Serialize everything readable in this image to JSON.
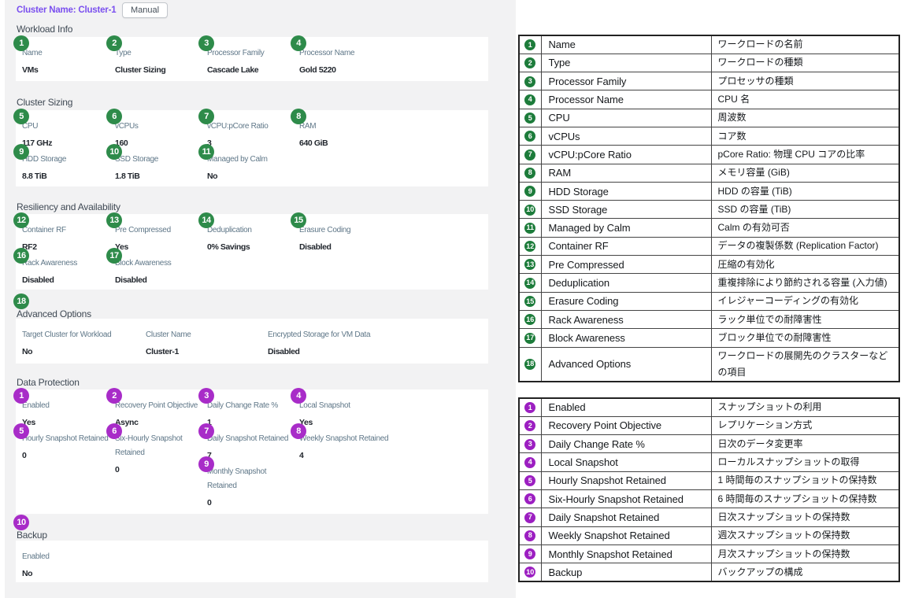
{
  "colors": {
    "accent_violet": "#7a4fef",
    "badge_green": "#2e8b4a",
    "badge_purple": "#a82cc8"
  },
  "header": {
    "title": "Cluster Name: Cluster-1",
    "button": "Manual"
  },
  "sections": [
    {
      "title": "Workload Info",
      "badge_color": "green",
      "columns": [
        {
          "fields": [
            {
              "n": "1",
              "label": "Name",
              "value": "VMs"
            }
          ]
        },
        {
          "fields": [
            {
              "n": "2",
              "label": "Type",
              "value": "Cluster Sizing"
            }
          ]
        },
        {
          "fields": [
            {
              "n": "3",
              "label": "Processor Family",
              "value": "Cascade Lake"
            }
          ]
        },
        {
          "fields": [
            {
              "n": "4",
              "label": "Processor Name",
              "value": "Gold 5220"
            }
          ]
        }
      ]
    },
    {
      "title": "Cluster Sizing",
      "badge_color": "green",
      "columns": [
        {
          "fields": [
            {
              "n": "5",
              "label": "CPU",
              "value": "117 GHz"
            },
            {
              "n": "9",
              "label": "HDD Storage",
              "value": "8.8 TiB"
            }
          ]
        },
        {
          "fields": [
            {
              "n": "6",
              "label": "vCPUs",
              "value": "160"
            },
            {
              "n": "10",
              "label": "SSD Storage",
              "value": "1.8 TiB"
            }
          ]
        },
        {
          "fields": [
            {
              "n": "7",
              "label": "vCPU:pCore Ratio",
              "value": "3"
            },
            {
              "n": "11",
              "label": "Managed by Calm",
              "value": "No"
            }
          ]
        },
        {
          "fields": [
            {
              "n": "8",
              "label": "RAM",
              "value": "640 GiB"
            }
          ]
        }
      ]
    },
    {
      "title": "Resiliency and Availability",
      "badge_color": "green",
      "columns": [
        {
          "fields": [
            {
              "n": "12",
              "label": "Container RF",
              "value": "RF2"
            },
            {
              "n": "16",
              "label": "Rack Awareness",
              "value": "Disabled"
            }
          ]
        },
        {
          "fields": [
            {
              "n": "13",
              "label": "Pre Compressed",
              "value": "Yes"
            },
            {
              "n": "17",
              "label": "Block Awareness",
              "value": "Disabled"
            }
          ]
        },
        {
          "fields": [
            {
              "n": "14",
              "label": "Deduplication",
              "value": "0% Savings"
            }
          ]
        },
        {
          "fields": [
            {
              "n": "15",
              "label": "Erasure Coding",
              "value": "Disabled"
            }
          ]
        }
      ]
    },
    {
      "title": "Advanced Options",
      "badge_color": "green",
      "heading_badge": "18",
      "columns": [
        {
          "fields": [
            {
              "label": "Target Cluster for Workload",
              "value": "No"
            }
          ]
        },
        {
          "fields": [
            {
              "label": "Cluster Name",
              "value": "Cluster-1"
            }
          ]
        },
        {
          "fields": [
            {
              "label": "Encrypted Storage for VM Data",
              "value": "Disabled"
            }
          ]
        }
      ]
    },
    {
      "title": "Data Protection",
      "badge_color": "purple",
      "columns": [
        {
          "fields": [
            {
              "n": "1",
              "label": "Enabled",
              "value": "Yes"
            },
            {
              "n": "5",
              "label": "Hourly Snapshot Retained",
              "value": "0"
            }
          ]
        },
        {
          "fields": [
            {
              "n": "2",
              "label": "Recovery Point Objective",
              "value": "Async"
            },
            {
              "n": "6",
              "label": "Six-Hourly Snapshot\nRetained",
              "value": "0"
            }
          ]
        },
        {
          "fields": [
            {
              "n": "3",
              "label": "Daily Change Rate %",
              "value": "1"
            },
            {
              "n": "7",
              "label": "Daily Snapshot Retained",
              "value": "7"
            },
            {
              "n": "9",
              "label": "Monthly Snapshot\nRetained",
              "value": "0"
            }
          ]
        },
        {
          "fields": [
            {
              "n": "4",
              "label": "Local Snapshot",
              "value": "Yes"
            },
            {
              "n": "8",
              "label": "Weekly Snapshot Retained",
              "value": "4"
            }
          ]
        }
      ]
    },
    {
      "title": "Backup",
      "badge_color": "purple",
      "heading_badge": "10",
      "columns": [
        {
          "fields": [
            {
              "label": "Enabled",
              "value": "No"
            }
          ]
        }
      ]
    }
  ],
  "tables": [
    {
      "badge_color": "green",
      "rows": [
        {
          "n": "1",
          "en": "Name",
          "ja": "ワークロードの名前"
        },
        {
          "n": "2",
          "en": "Type",
          "ja": "ワークロードの種類"
        },
        {
          "n": "3",
          "en": "Processor Family",
          "ja": "プロセッサの種類"
        },
        {
          "n": "4",
          "en": "Processor Name",
          "ja": "CPU 名"
        },
        {
          "n": "5",
          "en": "CPU",
          "ja": "周波数"
        },
        {
          "n": "6",
          "en": "vCPUs",
          "ja": "コア数"
        },
        {
          "n": "7",
          "en": "vCPU:pCore Ratio",
          "ja": "pCore Ratio: 物理 CPU コアの比率"
        },
        {
          "n": "8",
          "en": "RAM",
          "ja": "メモリ容量 (GiB)"
        },
        {
          "n": "9",
          "en": "HDD Storage",
          "ja": "HDD の容量 (TiB)"
        },
        {
          "n": "10",
          "en": "SSD Storage",
          "ja": "SSD の容量 (TiB)"
        },
        {
          "n": "11",
          "en": "Managed by Calm",
          "ja": "Calm の有効可否"
        },
        {
          "n": "12",
          "en": "Container RF",
          "ja": "データの複製係数 (Replication Factor)"
        },
        {
          "n": "13",
          "en": "Pre Compressed",
          "ja": "圧縮の有効化"
        },
        {
          "n": "14",
          "en": "Deduplication",
          "ja": "重複排除により節約される容量 (入力値)"
        },
        {
          "n": "15",
          "en": "Erasure Coding",
          "ja": "イレジャーコーディングの有効化"
        },
        {
          "n": "16",
          "en": "Rack Awareness",
          "ja": "ラック単位での耐障害性"
        },
        {
          "n": "17",
          "en": "Block Awareness",
          "ja": "ブロック単位での耐障害性"
        },
        {
          "n": "18",
          "en": "Advanced Options",
          "ja": "ワークロードの展開先のクラスターなどの項目"
        }
      ]
    },
    {
      "badge_color": "purple",
      "rows": [
        {
          "n": "1",
          "en": "Enabled",
          "ja": "スナップショットの利用"
        },
        {
          "n": "2",
          "en": "Recovery Point Objective",
          "ja": "レプリケーション方式"
        },
        {
          "n": "3",
          "en": "Daily Change Rate %",
          "ja": "日次のデータ変更率"
        },
        {
          "n": "4",
          "en": "Local Snapshot",
          "ja": "ローカルスナップショットの取得"
        },
        {
          "n": "5",
          "en": "Hourly Snapshot Retained",
          "ja": "1 時間毎のスナップショットの保持数"
        },
        {
          "n": "6",
          "en": "Six-Hourly Snapshot Retained",
          "ja": "6 時間毎のスナップショットの保持数"
        },
        {
          "n": "7",
          "en": "Daily Snapshot Retained",
          "ja": "日次スナップショットの保持数"
        },
        {
          "n": "8",
          "en": "Weekly Snapshot Retained",
          "ja": "週次スナップショットの保持数"
        },
        {
          "n": "9",
          "en": "Monthly Snapshot Retained",
          "ja": "月次スナップショットの保持数"
        },
        {
          "n": "10",
          "en": "Backup",
          "ja": "バックアップの構成"
        }
      ]
    }
  ]
}
